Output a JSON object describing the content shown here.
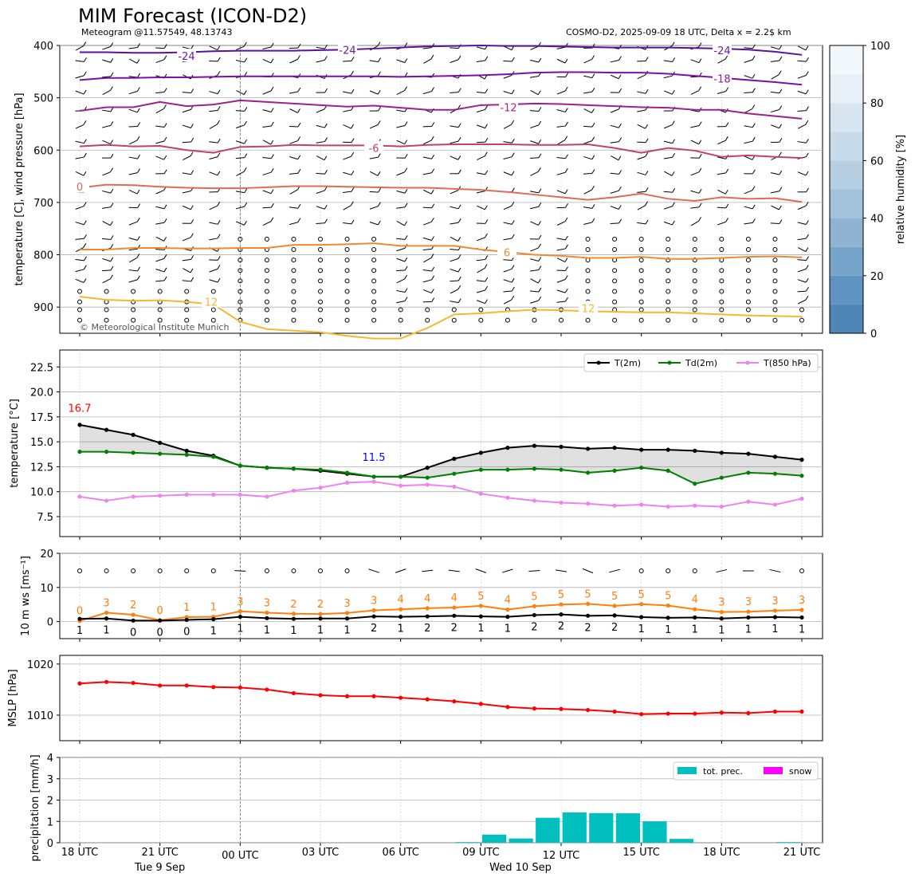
{
  "title": "MIM Forecast (ICON-D2)",
  "subtitle_left": "Meteogram @11.57549, 48.13743",
  "subtitle_right": "COSMO-D2, 2025-09-09 18 UTC, Delta x = 2.2$ km",
  "copyright": "© Meteorological Institute Munich",
  "time_axis": {
    "hour_labels": [
      "18 UTC",
      "21 UTC",
      "00 UTC",
      "03 UTC",
      "06 UTC",
      "09 UTC",
      "12 UTC",
      "15 UTC",
      "18 UTC",
      "21 UTC"
    ],
    "date_labels": [
      "Tue 9 Sep",
      "Wed 10 Sep"
    ]
  },
  "chart_data": [
    {
      "type": "contour",
      "name": "upper-air",
      "ylabel": "temperature [C], wind pressure [hPa]",
      "y_ticks": [
        "400",
        "500",
        "600",
        "700",
        "800",
        "900"
      ],
      "ylim": [
        950,
        400
      ],
      "colorbar_label": "relative humidity [%]",
      "colorbar_ticks": [
        "0",
        "20",
        "40",
        "60",
        "80",
        "100"
      ],
      "isotherm_labels": [
        {
          "text": "-24",
          "color": "#6a1aa8"
        },
        {
          "text": "-24",
          "color": "#6a1aa8"
        },
        {
          "text": "-24",
          "color": "#6a1aa8"
        },
        {
          "text": "-18",
          "color": "#8a1aa8"
        },
        {
          "text": "-12",
          "color": "#a8208a"
        },
        {
          "text": "-6",
          "color": "#c8406a"
        },
        {
          "text": "0",
          "color": "#e06a5a"
        },
        {
          "text": "6",
          "color": "#f08a30"
        },
        {
          "text": "12",
          "color": "#f5b830"
        },
        {
          "text": "12",
          "color": "#f5b830"
        }
      ]
    },
    {
      "type": "line",
      "name": "temperature",
      "ylabel": "temperature [$^\\circ$C]",
      "y_ticks": [
        "7.5",
        "10.0",
        "12.5",
        "15.0",
        "17.5",
        "20.0",
        "22.5"
      ],
      "ylim": [
        5.5,
        24.2
      ],
      "legend": [
        "T(2m)",
        "Td(2m)",
        "T(850 hPa)"
      ],
      "annotations": [
        {
          "text": "16.7",
          "color": "#ff0000"
        },
        {
          "text": "11.5",
          "color": "#0000ff"
        }
      ],
      "series": [
        {
          "name": "T(2m)",
          "color": "#000000",
          "values": [
            16.7,
            16.2,
            15.7,
            14.9,
            14.1,
            13.6,
            12.6,
            12.4,
            12.3,
            12.1,
            11.8,
            11.5,
            11.5,
            12.4,
            13.3,
            13.9,
            14.4,
            14.6,
            14.5,
            14.3,
            14.4,
            14.2,
            14.2,
            14.1,
            13.9,
            13.8,
            13.5,
            13.2
          ]
        },
        {
          "name": "Td(2m)",
          "color": "#008000",
          "values": [
            14.0,
            14.0,
            13.9,
            13.8,
            13.7,
            13.5,
            12.6,
            12.4,
            12.3,
            12.2,
            11.9,
            11.5,
            11.5,
            11.4,
            11.8,
            12.2,
            12.2,
            12.3,
            12.2,
            11.9,
            12.1,
            12.4,
            12.1,
            10.8,
            11.4,
            11.9,
            11.8,
            11.6
          ]
        },
        {
          "name": "T(850 hPa)",
          "color": "#ee82ee",
          "values": [
            9.5,
            9.1,
            9.5,
            9.6,
            9.7,
            9.7,
            9.7,
            9.5,
            10.1,
            10.4,
            10.9,
            11.0,
            10.6,
            10.7,
            10.5,
            9.8,
            9.4,
            9.1,
            8.9,
            8.8,
            8.6,
            8.7,
            8.5,
            8.6,
            8.5,
            9.0,
            8.7,
            9.3
          ]
        }
      ]
    },
    {
      "type": "line",
      "name": "wind",
      "ylabel": "10 m ws [ms$^{-1}$]",
      "y_ticks": [
        "0",
        "10",
        "20"
      ],
      "ylim": [
        -5,
        20
      ],
      "series": [
        {
          "name": "gust",
          "color": "#ff7f0e",
          "values": [
            0.2,
            2.6,
            2.0,
            0.4,
            1.3,
            1.4,
            3.0,
            2.6,
            2.3,
            2.2,
            2.5,
            3.3,
            3.6,
            3.9,
            4.1,
            4.6,
            3.5,
            4.5,
            5.0,
            5.2,
            4.6,
            5.1,
            4.7,
            3.6,
            2.8,
            2.9,
            3.2,
            3.4
          ]
        },
        {
          "name": "speed",
          "color": "#000000",
          "values": [
            0.8,
            0.9,
            0.3,
            0.3,
            0.5,
            0.7,
            1.4,
            1.0,
            0.8,
            0.9,
            0.9,
            1.5,
            1.4,
            1.5,
            1.7,
            1.5,
            1.4,
            1.9,
            2.1,
            1.7,
            1.8,
            1.3,
            1.1,
            1.2,
            0.9,
            1.2,
            1.3,
            1.2
          ]
        }
      ],
      "gust_labels": [
        "0",
        "3",
        "2",
        "0",
        "1",
        "1",
        "3",
        "3",
        "2",
        "2",
        "3",
        "3",
        "4",
        "4",
        "4",
        "5",
        "4",
        "5",
        "5",
        "5",
        "5",
        "5",
        "5",
        "4",
        "3",
        "3",
        "3",
        "3"
      ],
      "speed_labels": [
        "1",
        "1",
        "0",
        "0",
        "0",
        "1",
        "1",
        "1",
        "1",
        "1",
        "1",
        "2",
        "1",
        "2",
        "2",
        "1",
        "1",
        "2",
        "2",
        "2",
        "2",
        "1",
        "1",
        "1",
        "1",
        "1",
        "1",
        "1"
      ]
    },
    {
      "type": "line",
      "name": "mslp",
      "ylabel": "MSLP [hPa]",
      "y_ticks": [
        "1010",
        "1020"
      ],
      "ylim": [
        1005,
        1021.7
      ],
      "series": [
        {
          "name": "MSLP",
          "color": "#ff0000",
          "values": [
            1016.2,
            1016.5,
            1016.3,
            1015.8,
            1015.8,
            1015.5,
            1015.4,
            1015.0,
            1014.3,
            1013.9,
            1013.7,
            1013.7,
            1013.4,
            1013.1,
            1012.7,
            1012.2,
            1011.6,
            1011.3,
            1011.2,
            1011.0,
            1010.7,
            1010.2,
            1010.3,
            1010.3,
            1010.5,
            1010.4,
            1010.7,
            1010.7
          ]
        }
      ]
    },
    {
      "type": "bar",
      "name": "precipitation",
      "ylabel": "precipitation [mm/h]",
      "y_ticks": [
        "0",
        "1",
        "2",
        "3",
        "4"
      ],
      "ylim": [
        0,
        4
      ],
      "legend": [
        "tot. prec.",
        "snow"
      ],
      "colors": {
        "total": "#00bfbf",
        "snow": "#ff00ff"
      },
      "values": [
        0,
        0,
        0,
        0,
        0,
        0,
        0,
        0,
        0,
        0,
        0,
        0,
        0,
        0,
        0.03,
        0.38,
        0.2,
        1.17,
        1.42,
        1.39,
        1.38,
        1.0,
        0.18,
        0,
        0,
        0,
        0.03,
        0
      ]
    }
  ]
}
